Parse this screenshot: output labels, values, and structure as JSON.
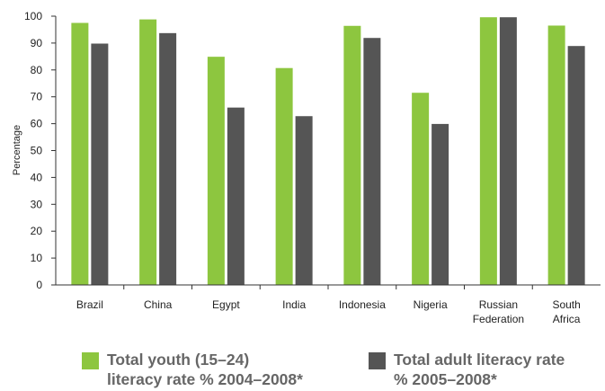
{
  "chart_data": {
    "type": "bar",
    "categories": [
      "Brazil",
      "China",
      "Egypt",
      "India",
      "Indonesia",
      "Nigeria",
      "Russian Federation",
      "South Africa"
    ],
    "category_lines": [
      [
        "Brazil"
      ],
      [
        "China"
      ],
      [
        "Egypt"
      ],
      [
        "India"
      ],
      [
        "Indonesia"
      ],
      [
        "Nigeria"
      ],
      [
        "Russian",
        "Federation"
      ],
      [
        "South",
        "Africa"
      ]
    ],
    "series": [
      {
        "name": "Total youth (15–24) literacy rate % 2004–2008*",
        "values": [
          97.5,
          98.8,
          84.9,
          80.7,
          96.4,
          71.5,
          99.6,
          96.5
        ],
        "color": "#8dc63f"
      },
      {
        "name": "Total adult literacy rate % 2005–2008*",
        "values": [
          89.8,
          93.7,
          66.0,
          62.8,
          91.9,
          59.9,
          99.6,
          88.9
        ],
        "color": "#555555"
      }
    ],
    "ylabel": "Percentage",
    "ylim": [
      0,
      100
    ],
    "yticks": [
      0,
      10,
      20,
      30,
      40,
      50,
      60,
      70,
      80,
      90,
      100
    ],
    "grid": false,
    "legend_position": "bottom"
  },
  "legend": [
    {
      "label": "Total youth (15–24)\nliteracy rate % 2004–2008*",
      "color": "#8dc63f"
    },
    {
      "label": "Total adult literacy rate\n% 2005–2008*",
      "color": "#555555"
    }
  ]
}
